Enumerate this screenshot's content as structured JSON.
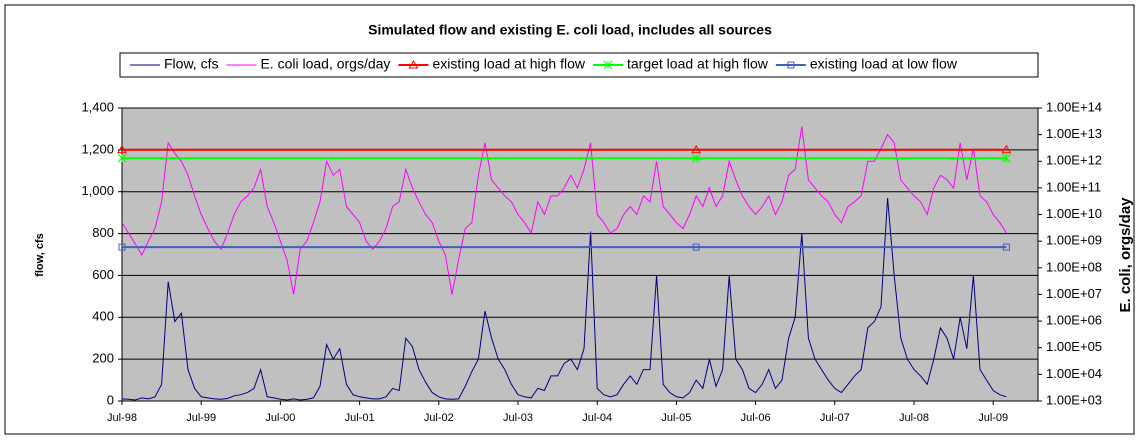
{
  "chart_data": {
    "type": "line",
    "title": "Simulated flow and existing E. coli load, includes all sources",
    "y_label": "flow, cfs",
    "y2_label": "E. coli, orgs/day",
    "x": [
      "Jul-98",
      "Aug-98",
      "Sep-98",
      "Oct-98",
      "Nov-98",
      "Dec-98",
      "Jan-99",
      "Feb-99",
      "Mar-99",
      "Apr-99",
      "May-99",
      "Jun-99",
      "Jul-99",
      "Aug-99",
      "Sep-99",
      "Oct-99",
      "Nov-99",
      "Dec-99",
      "Jan-00",
      "Feb-00",
      "Mar-00",
      "Apr-00",
      "May-00",
      "Jun-00",
      "Jul-00",
      "Aug-00",
      "Sep-00",
      "Oct-00",
      "Nov-00",
      "Dec-00",
      "Jan-01",
      "Feb-01",
      "Mar-01",
      "Apr-01",
      "May-01",
      "Jun-01",
      "Jul-01",
      "Aug-01",
      "Sep-01",
      "Oct-01",
      "Nov-01",
      "Dec-01",
      "Jan-02",
      "Feb-02",
      "Mar-02",
      "Apr-02",
      "May-02",
      "Jun-02",
      "Jul-02",
      "Aug-02",
      "Sep-02",
      "Oct-02",
      "Nov-02",
      "Dec-02",
      "Jan-03",
      "Feb-03",
      "Mar-03",
      "Apr-03",
      "May-03",
      "Jun-03",
      "Jul-03",
      "Aug-03",
      "Sep-03",
      "Oct-03",
      "Nov-03",
      "Dec-03",
      "Jan-04",
      "Feb-04",
      "Mar-04",
      "Apr-04",
      "May-04",
      "Jun-04",
      "Jul-04",
      "Aug-04",
      "Sep-04",
      "Oct-04",
      "Nov-04",
      "Dec-04",
      "Jan-05",
      "Feb-05",
      "Mar-05",
      "Apr-05",
      "May-05",
      "Jun-05",
      "Jul-05",
      "Aug-05",
      "Sep-05",
      "Oct-05",
      "Nov-05",
      "Dec-05",
      "Jan-06",
      "Feb-06",
      "Mar-06",
      "Apr-06",
      "May-06",
      "Jun-06",
      "Jul-06",
      "Aug-06",
      "Sep-06",
      "Oct-06",
      "Nov-06",
      "Dec-06",
      "Jan-07",
      "Feb-07",
      "Mar-07",
      "Apr-07",
      "May-07",
      "Jun-07",
      "Jul-07",
      "Aug-07",
      "Sep-07",
      "Oct-07",
      "Nov-07",
      "Dec-07",
      "Jan-08",
      "Feb-08",
      "Mar-08",
      "Apr-08",
      "May-08",
      "Jun-08",
      "Jul-08",
      "Aug-08",
      "Sep-08",
      "Oct-08",
      "Nov-08",
      "Dec-08",
      "Jan-09",
      "Feb-09",
      "Mar-09",
      "Apr-09",
      "May-09",
      "Jun-09",
      "Jul-09",
      "Aug-09",
      "Sep-09",
      "Oct-09",
      "Nov-09",
      "Dec-09",
      "Jan-10"
    ],
    "xticks": [
      "Jul-98",
      "Jul-99",
      "Jul-00",
      "Jul-01",
      "Jul-02",
      "Jul-03",
      "Jul-04",
      "Jul-05",
      "Jul-06",
      "Jul-07",
      "Jul-08",
      "Jul-09"
    ],
    "ylim": [
      0,
      1400
    ],
    "yticks": [
      0,
      200,
      400,
      600,
      800,
      {
        "value": 1000,
        "label": "1,000"
      },
      {
        "value": 1200,
        "label": "1,200"
      },
      {
        "value": 1400,
        "label": "1,400"
      }
    ],
    "y2lim": [
      1000,
      100000000000000
    ],
    "y2_log": true,
    "y2ticks": [
      {
        "value": 1000,
        "label": "1.00E+03"
      },
      {
        "value": 10000,
        "label": "1.00E+04"
      },
      {
        "value": 100000,
        "label": "1.00E+05"
      },
      {
        "value": 1000000,
        "label": "1.00E+06"
      },
      {
        "value": 10000000,
        "label": "1.00E+07"
      },
      {
        "value": 100000000,
        "label": "1.00E+08"
      },
      {
        "value": 1000000000,
        "label": "1.00E+09"
      },
      {
        "value": 10000000000,
        "label": "1.00E+10"
      },
      {
        "value": 100000000000,
        "label": "1.00E+11"
      },
      {
        "value": 1000000000000,
        "label": "1.00E+12"
      },
      {
        "value": 10000000000000,
        "label": "1.00E+13"
      },
      {
        "value": 100000000000000,
        "label": "1.00E+14"
      }
    ],
    "grid": true,
    "background": "#c0c0c0",
    "series": [
      {
        "name": "Flow, cfs",
        "color": "#000080",
        "values": [
          10,
          8,
          5,
          15,
          10,
          20,
          80,
          570,
          380,
          420,
          150,
          60,
          20,
          15,
          10,
          8,
          12,
          25,
          30,
          40,
          60,
          150,
          20,
          15,
          8,
          5,
          10,
          5,
          8,
          15,
          70,
          270,
          200,
          250,
          80,
          30,
          20,
          15,
          10,
          10,
          20,
          60,
          50,
          300,
          260,
          150,
          90,
          40,
          20,
          10,
          8,
          10,
          70,
          140,
          200,
          430,
          300,
          200,
          150,
          80,
          30,
          20,
          15,
          60,
          50,
          120,
          120,
          180,
          200,
          150,
          250,
          810,
          60,
          30,
          20,
          30,
          80,
          120,
          80,
          150,
          150,
          600,
          80,
          40,
          20,
          15,
          40,
          100,
          60,
          200,
          70,
          150,
          600,
          200,
          150,
          60,
          40,
          80,
          150,
          60,
          100,
          300,
          400,
          800,
          300,
          200,
          150,
          100,
          60,
          40,
          80,
          120,
          150,
          350,
          380,
          450,
          970,
          600,
          300,
          200,
          150,
          120,
          80,
          200,
          350,
          300,
          200,
          400,
          250,
          600,
          150,
          100,
          50,
          30,
          20,
          null,
          null,
          null,
          null
        ]
      },
      {
        "name": "E. coli load, orgs/day",
        "color": "#ff00ff",
        "axis": "y2",
        "values": [
          5000000000.0,
          2000000000.0,
          800000000.0,
          300000000.0,
          1000000000.0,
          3000000000.0,
          30000000000.0,
          5000000000000.0,
          2000000000000.0,
          1000000000000.0,
          300000000000.0,
          50000000000.0,
          10000000000.0,
          3000000000.0,
          1000000000.0,
          500000000.0,
          2000000000.0,
          10000000000.0,
          30000000000.0,
          50000000000.0,
          100000000000.0,
          500000000000.0,
          20000000000.0,
          5000000000.0,
          1000000000.0,
          200000000.0,
          10000000.0,
          500000000.0,
          1000000000.0,
          5000000000.0,
          30000000000.0,
          1000000000000.0,
          300000000000.0,
          500000000000.0,
          20000000000.0,
          10000000000.0,
          5000000000.0,
          1000000000.0,
          500000000.0,
          1000000000.0,
          3000000000.0,
          20000000000.0,
          30000000000.0,
          500000000000.0,
          100000000000.0,
          30000000000.0,
          10000000000.0,
          5000000000.0,
          1000000000.0,
          300000000.0,
          10000000.0,
          200000000.0,
          3000000000.0,
          5000000000.0,
          300000000000.0,
          5000000000000.0,
          200000000000.0,
          100000000000.0,
          50000000000.0,
          30000000000.0,
          10000000000.0,
          5000000000.0,
          2000000000.0,
          30000000000.0,
          10000000000.0,
          50000000000.0,
          50000000000.0,
          100000000000.0,
          300000000000.0,
          100000000000.0,
          500000000000.0,
          5000000000000.0,
          10000000000.0,
          5000000000.0,
          2000000000.0,
          3000000000.0,
          10000000000.0,
          20000000000.0,
          10000000000.0,
          50000000000.0,
          30000000000.0,
          1000000000000.0,
          20000000000.0,
          10000000000.0,
          5000000000.0,
          3000000000.0,
          10000000000.0,
          50000000000.0,
          20000000000.0,
          100000000000.0,
          20000000000.0,
          50000000000.0,
          1000000000000.0,
          200000000000.0,
          50000000000.0,
          20000000000.0,
          10000000000.0,
          20000000000.0,
          50000000000.0,
          10000000000.0,
          30000000000.0,
          300000000000.0,
          500000000000.0,
          20000000000000.0,
          200000000000.0,
          100000000000.0,
          50000000000.0,
          30000000000.0,
          10000000000.0,
          5000000000.0,
          20000000000.0,
          30000000000.0,
          50000000000.0,
          1000000000000.0,
          1000000000000.0,
          3000000000000.0,
          10000000000000.0,
          5000000000000.0,
          200000000000.0,
          100000000000.0,
          50000000000.0,
          30000000000.0,
          10000000000.0,
          100000000000.0,
          300000000000.0,
          200000000000.0,
          100000000000.0,
          5000000000000.0,
          200000000000.0,
          3000000000000.0,
          50000000000.0,
          30000000000.0,
          10000000000.0,
          5000000000.0,
          2000000000.0,
          null,
          null,
          null,
          null
        ]
      },
      {
        "name": "existing load at high flow",
        "color": "#ff0000",
        "marker": "triangle",
        "axis": "y2",
        "x": [
          "Jul-98",
          "Oct-05",
          "Sep-09"
        ],
        "values": [
          2700000000000.0,
          2700000000000.0,
          2700000000000.0
        ]
      },
      {
        "name": "target load at high flow",
        "color": "#00ff00",
        "marker": "cross",
        "axis": "y2",
        "x": [
          "Jul-98",
          "Oct-05",
          "Sep-09"
        ],
        "values": [
          1300000000000.0,
          1300000000000.0,
          1300000000000.0
        ]
      },
      {
        "name": "existing load at low flow",
        "color": "#4060c0",
        "marker": "square",
        "axis": "y2",
        "x": [
          "Jul-98",
          "Oct-05",
          "Sep-09"
        ],
        "values": [
          600000000.0,
          600000000.0,
          600000000.0
        ]
      }
    ]
  }
}
